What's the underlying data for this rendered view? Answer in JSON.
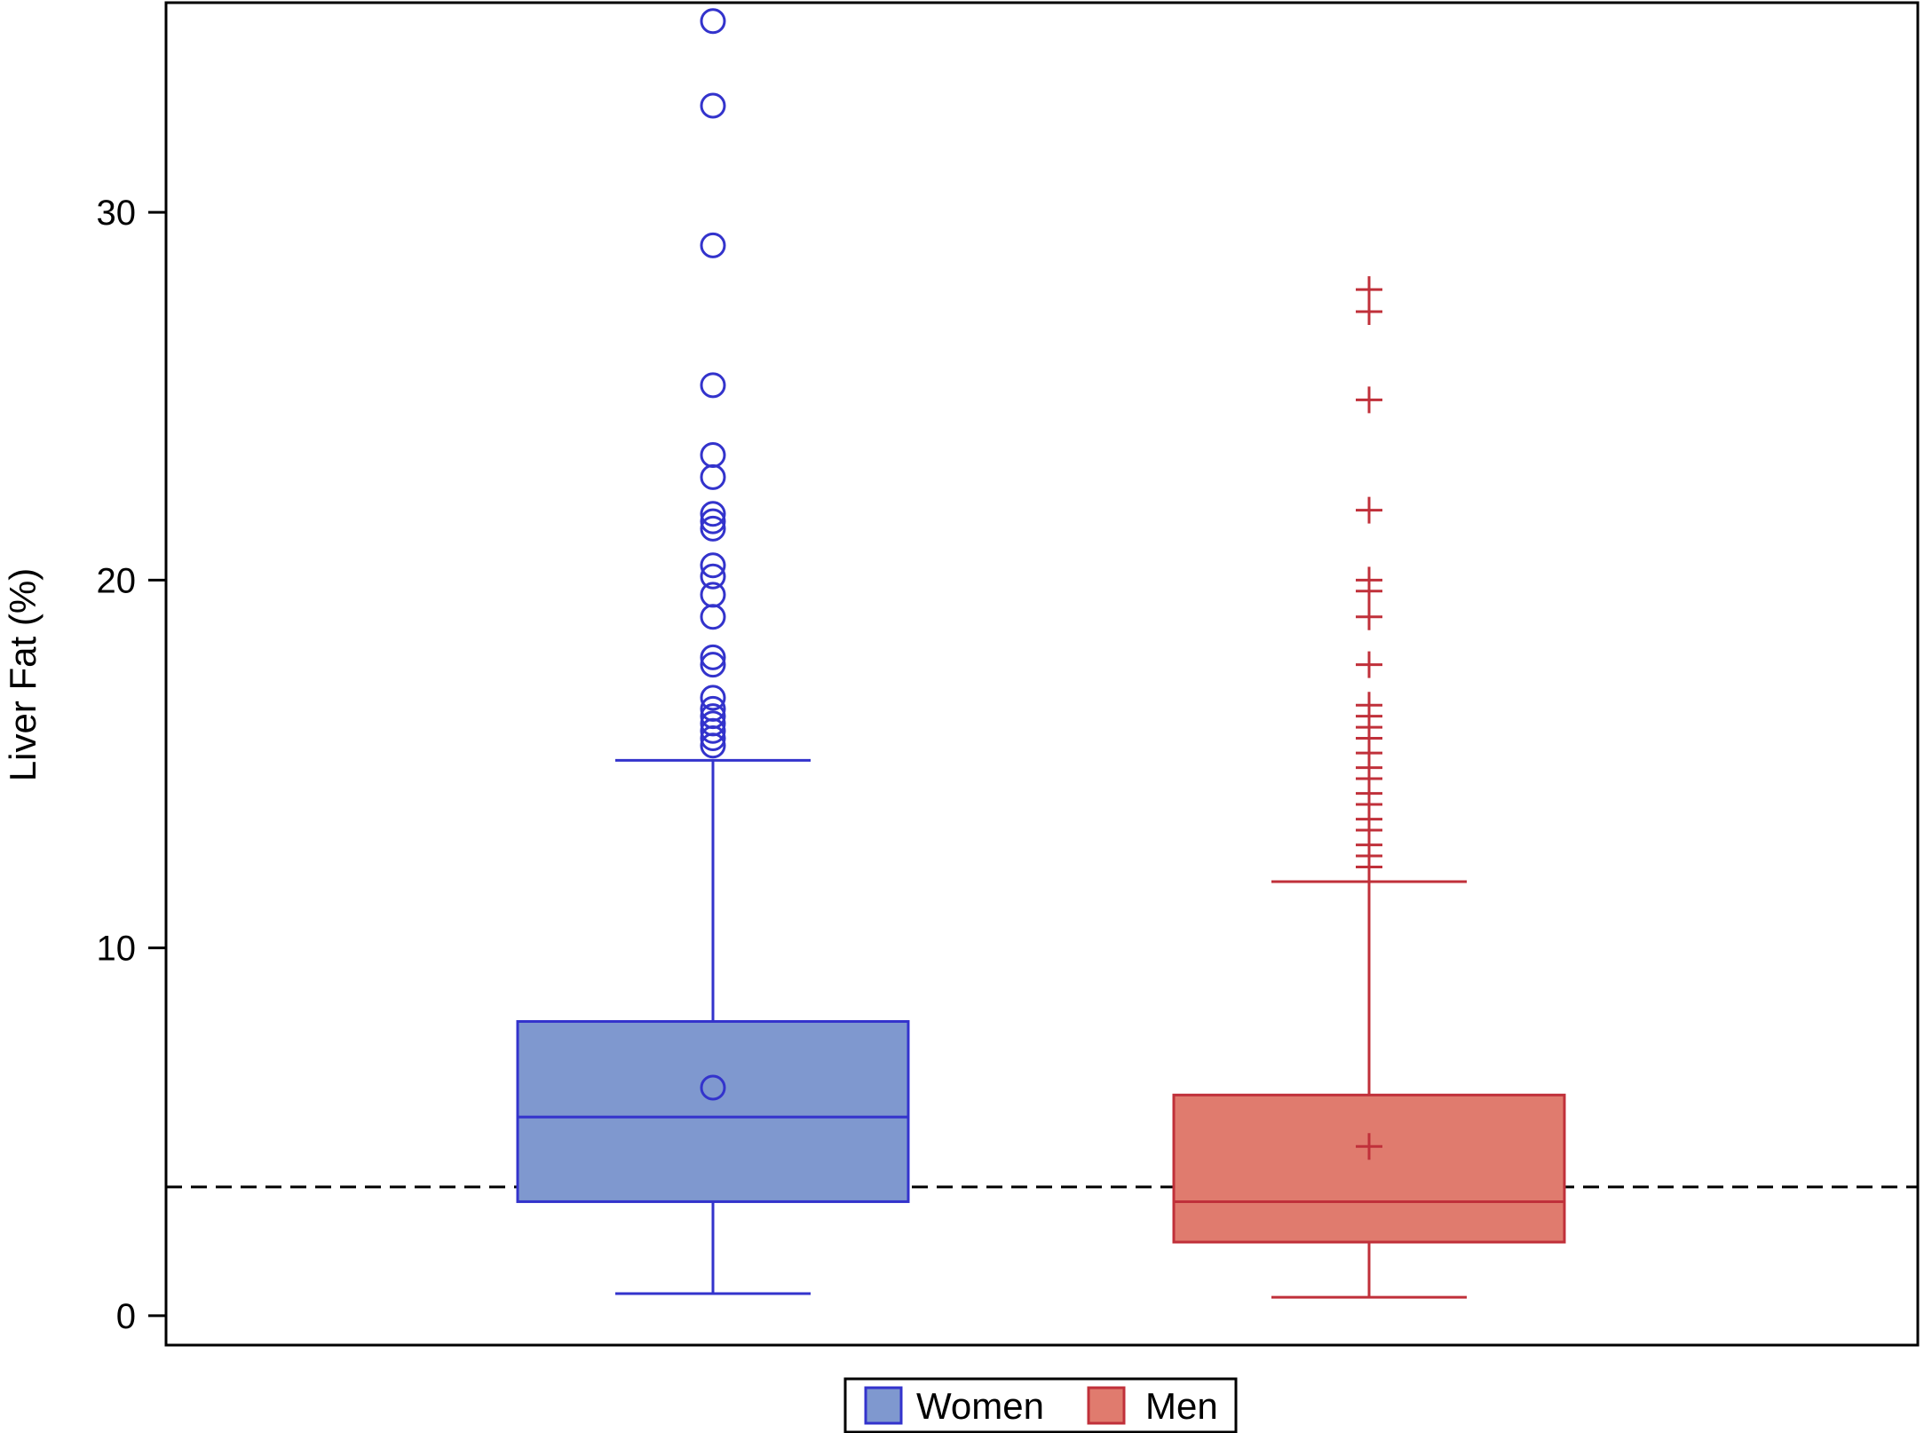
{
  "chart_data": {
    "type": "box",
    "ylabel": "Liver Fat (%)",
    "xlabel": "",
    "ylim": [
      -0.8,
      35.7
    ],
    "yticks": [
      0,
      10,
      20,
      30
    ],
    "grid": false,
    "legend_position": "bottom",
    "reference_line": {
      "y": 3.5,
      "style": "dashed",
      "color": "#000000"
    },
    "series": [
      {
        "name": "Women",
        "color": "#3333cc",
        "fill": "#7f98cf",
        "whisker_low": 0.6,
        "q1": 3.1,
        "median": 5.4,
        "q3": 8.0,
        "whisker_high": 15.1,
        "mean": 6.2,
        "marker": "circle",
        "outliers": [
          35.2,
          32.9,
          29.1,
          25.3,
          23.4,
          22.8,
          21.8,
          21.6,
          21.4,
          20.4,
          20.1,
          19.6,
          19.0,
          17.9,
          17.7,
          16.8,
          16.5,
          16.3,
          16.1,
          15.9,
          15.7,
          15.5
        ]
      },
      {
        "name": "Men",
        "color": "#c0303a",
        "fill": "#e07b6e",
        "whisker_low": 0.5,
        "q1": 2.0,
        "median": 3.1,
        "q3": 6.0,
        "whisker_high": 11.8,
        "mean": 4.6,
        "marker": "plus",
        "outliers": [
          27.9,
          27.3,
          24.9,
          21.9,
          20.0,
          19.7,
          19.0,
          17.7,
          16.6,
          16.3,
          16.0,
          15.7,
          15.3,
          14.9,
          14.6,
          14.2,
          13.9,
          13.5,
          13.2,
          12.8,
          12.5,
          12.2
        ]
      }
    ],
    "legend": [
      "Women",
      "Men"
    ]
  }
}
